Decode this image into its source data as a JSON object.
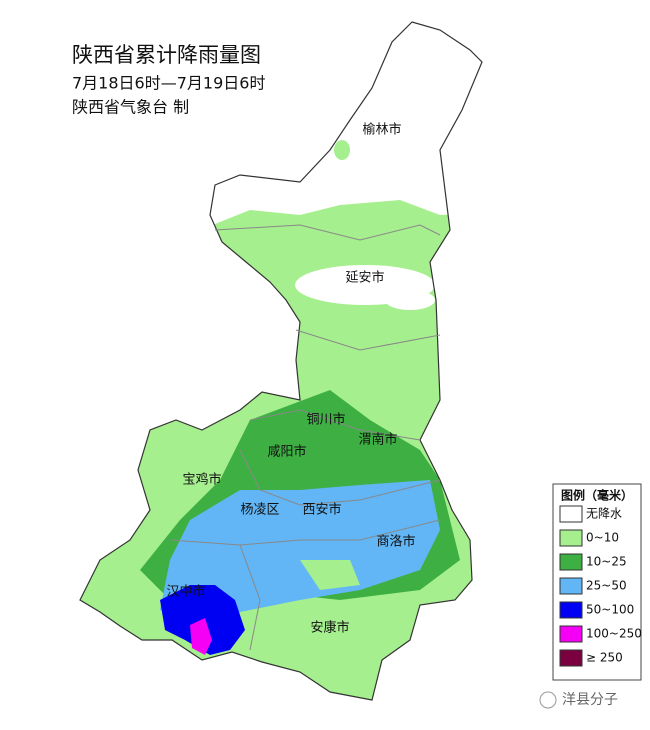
{
  "header": {
    "title": "陕西省累计降雨量图",
    "period": "7月18日6时—7月19日6时",
    "issuer": "陕西省气象台 制"
  },
  "cities": [
    "榆林市",
    "延安市",
    "铜川市",
    "渭南市",
    "咸阳市",
    "宝鸡市",
    "杨凌区",
    "西安市",
    "商洛市",
    "汉中市",
    "安康市"
  ],
  "legend": {
    "title": "图例（毫米）",
    "items": [
      {
        "label": "无降水",
        "color": "#ffffff"
      },
      {
        "label": "0~10",
        "color": "#a6ef8f"
      },
      {
        "label": "10~25",
        "color": "#3eb043"
      },
      {
        "label": "25~50",
        "color": "#62b6f6"
      },
      {
        "label": "50~100",
        "color": "#0000f2"
      },
      {
        "label": "100~250",
        "color": "#f500f5"
      },
      {
        "label": "≥ 250",
        "color": "#7a0040"
      }
    ]
  },
  "watermark": "洋县分子"
}
